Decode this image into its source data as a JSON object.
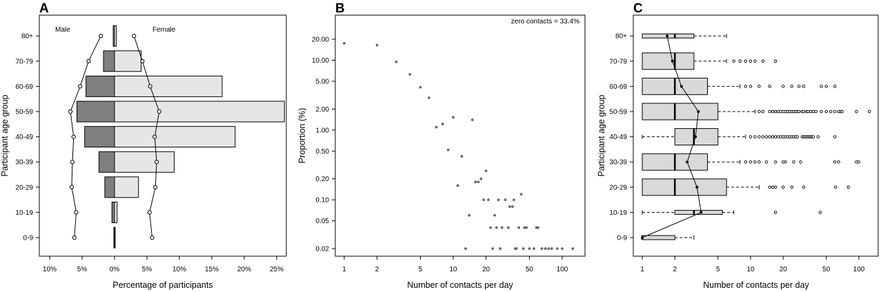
{
  "chart_data": [
    {
      "panel": "A",
      "type": "bar",
      "orientation": "horizontal",
      "ylabel": "Participant age group",
      "xlabel": "Percentage of participants",
      "categories": [
        "0-9",
        "10-19",
        "20-29",
        "30-39",
        "40-49",
        "50-59",
        "60-69",
        "70-79",
        "80+"
      ],
      "series": [
        {
          "name": "Male",
          "values": [
            0.1,
            0.4,
            1.5,
            2.4,
            4.6,
            5.8,
            4.4,
            1.7,
            0.2
          ],
          "color": "#7f7f7f"
        },
        {
          "name": "Female",
          "values": [
            0.1,
            0.4,
            3.7,
            9.2,
            18.6,
            26.2,
            16.6,
            4.1,
            0.3
          ],
          "color": "#e6e6e6"
        }
      ],
      "reference_lines": [
        {
          "name": "Male",
          "values": [
            6.2,
            5.9,
            6.6,
            6.5,
            6.3,
            6.8,
            5.3,
            4.0,
            2.1
          ]
        },
        {
          "name": "Female",
          "values": [
            5.8,
            5.4,
            6.3,
            6.5,
            6.2,
            6.9,
            5.5,
            4.3,
            3.0
          ]
        }
      ],
      "xlim": [
        -10,
        26
      ],
      "xticks": [
        -10,
        -5,
        0,
        5,
        10,
        15,
        20,
        25
      ],
      "xtick_labels": [
        "10%",
        "5%",
        "0%",
        "5%",
        "10%",
        "15%",
        "20%",
        "25%"
      ],
      "legend_labels": {
        "left": "Male",
        "right": "Female"
      }
    },
    {
      "panel": "B",
      "type": "scatter",
      "xlabel": "Number of contacts per day",
      "ylabel": "Proportion (%)",
      "xscale": "log",
      "yscale": "log",
      "xlim": [
        0.9,
        140
      ],
      "ylim": [
        0.018,
        30
      ],
      "xticks": [
        1,
        2,
        5,
        10,
        20,
        50,
        100
      ],
      "yticks": [
        0.02,
        0.05,
        0.1,
        0.2,
        0.5,
        1.0,
        2.0,
        5.0,
        10.0,
        20.0
      ],
      "ytick_labels": [
        "0.02",
        "0.05",
        "0.10",
        "0.20",
        "0.50",
        "1.00",
        "2.00",
        "5.00",
        "10.00",
        "20.00"
      ],
      "annotation": "zero contacts = 33.4%",
      "points": [
        [
          1,
          17.5
        ],
        [
          2,
          16.5
        ],
        [
          3,
          9.5
        ],
        [
          4,
          6.3
        ],
        [
          5,
          4.1
        ],
        [
          6,
          2.9
        ],
        [
          7,
          1.1
        ],
        [
          8,
          1.22
        ],
        [
          9,
          0.52
        ],
        [
          10,
          1.52
        ],
        [
          11,
          0.16
        ],
        [
          12,
          0.42
        ],
        [
          13,
          0.02
        ],
        [
          14,
          0.06
        ],
        [
          15,
          1.4
        ],
        [
          16,
          0.18
        ],
        [
          17,
          0.18
        ],
        [
          18,
          0.2
        ],
        [
          19,
          0.1
        ],
        [
          20,
          0.26
        ],
        [
          21,
          0.1
        ],
        [
          22,
          0.04
        ],
        [
          23,
          0.02
        ],
        [
          24,
          0.06
        ],
        [
          25,
          0.04
        ],
        [
          26,
          0.1
        ],
        [
          27,
          0.02
        ],
        [
          28,
          0.04
        ],
        [
          30,
          0.1
        ],
        [
          32,
          0.04
        ],
        [
          33,
          0.08
        ],
        [
          35,
          0.08
        ],
        [
          36,
          0.1
        ],
        [
          37,
          0.02
        ],
        [
          38,
          0.02
        ],
        [
          40,
          0.04
        ],
        [
          42,
          0.12
        ],
        [
          44,
          0.02
        ],
        [
          45,
          0.04
        ],
        [
          47,
          0.04
        ],
        [
          50,
          0.02
        ],
        [
          55,
          0.02
        ],
        [
          58,
          0.04
        ],
        [
          60,
          0.04
        ],
        [
          65,
          0.02
        ],
        [
          70,
          0.02
        ],
        [
          75,
          0.02
        ],
        [
          80,
          0.02
        ],
        [
          90,
          0.02
        ],
        [
          100,
          0.02
        ],
        [
          125,
          0.02
        ]
      ]
    },
    {
      "panel": "C",
      "type": "boxplot",
      "orientation": "horizontal",
      "xlabel": "Number of contacts per day",
      "ylabel": "Participant age group",
      "xscale": "log",
      "xlim": [
        0.9,
        140
      ],
      "xticks": [
        1,
        2,
        5,
        10,
        20,
        50,
        100
      ],
      "categories": [
        "0-9",
        "10-19",
        "20-29",
        "30-39",
        "40-49",
        "50-59",
        "60-69",
        "70-79",
        "80+"
      ],
      "boxes": [
        {
          "group": "0-9",
          "min": 1,
          "q1": 1,
          "median": 1,
          "q3": 2,
          "max": 3,
          "mean": 1.0,
          "outliers": []
        },
        {
          "group": "10-19",
          "min": 1,
          "q1": 2,
          "median": 3,
          "q3": 5.5,
          "max": 7,
          "mean": 3.5,
          "outliers": [
            17,
            44
          ]
        },
        {
          "group": "20-29",
          "min": 1,
          "q1": 1,
          "median": 2,
          "q3": 6,
          "max": 12,
          "mean": 3.2,
          "outliers": [
            15,
            16,
            17,
            20,
            24,
            31,
            61,
            80
          ]
        },
        {
          "group": "30-39",
          "min": 1,
          "q1": 1,
          "median": 2,
          "q3": 4,
          "max": 8,
          "mean": 2.6,
          "outliers": [
            9,
            10,
            11,
            12,
            14,
            17,
            20,
            21,
            25,
            29,
            60,
            65,
            95,
            100
          ]
        },
        {
          "group": "40-49",
          "min": 1,
          "q1": 2,
          "median": 3,
          "q3": 5,
          "max": 9,
          "mean": 3.1,
          "outliers": [
            10,
            11,
            12,
            13,
            14,
            15,
            16,
            17,
            18,
            19,
            20,
            21,
            22,
            23,
            24,
            25,
            26,
            27,
            30,
            31,
            32,
            33,
            34,
            35,
            36,
            37,
            38,
            42,
            60
          ]
        },
        {
          "group": "50-59",
          "min": 1,
          "q1": 1,
          "median": 2,
          "q3": 5,
          "max": 11,
          "mean": 3.3,
          "outliers": [
            12,
            13,
            15,
            16,
            17,
            18,
            19,
            20,
            21,
            22,
            23,
            24,
            25,
            26,
            27,
            28,
            30,
            31,
            33,
            34,
            36,
            38,
            40,
            45,
            50,
            55,
            60,
            65,
            68,
            70,
            95,
            125
          ]
        },
        {
          "group": "60-69",
          "min": 1,
          "q1": 1,
          "median": 2,
          "q3": 4,
          "max": 8,
          "mean": 2.3,
          "outliers": [
            9,
            10,
            12,
            15,
            20,
            24,
            28,
            31,
            45,
            50,
            60
          ]
        },
        {
          "group": "70-79",
          "min": 1,
          "q1": 1,
          "median": 2,
          "q3": 3,
          "max": 6,
          "mean": 1.9,
          "outliers": [
            7,
            8,
            9,
            10,
            11,
            13,
            17
          ]
        },
        {
          "group": "80+",
          "min": 1,
          "q1": 1,
          "median": 2,
          "q3": 3,
          "max": 6,
          "mean": 1.7,
          "outliers": []
        }
      ]
    }
  ]
}
